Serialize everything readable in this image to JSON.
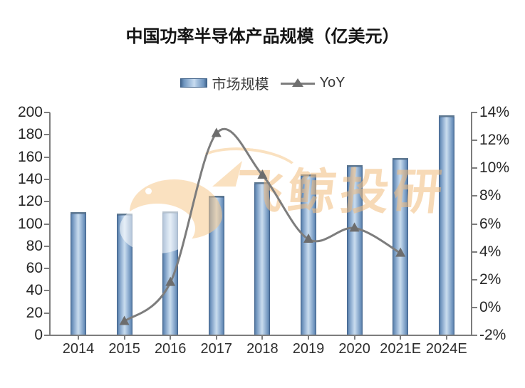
{
  "watermark": {
    "text": "飞鲸投研",
    "color": "#f2bc7e"
  },
  "chart_data": {
    "type": "bar",
    "combo": "bar+line",
    "title": "中国功率半导体产品规模（亿美元）",
    "categories": [
      "2014",
      "2015",
      "2016",
      "2017",
      "2018",
      "2019",
      "2020",
      "2021E",
      "2024E"
    ],
    "series": [
      {
        "name": "市场规模",
        "type": "bar",
        "axis": "left",
        "color": "#87aed3",
        "values": [
          110.5,
          109.5,
          111.5,
          125.5,
          137.5,
          144.5,
          153,
          159,
          197.5
        ]
      },
      {
        "name": "YoY",
        "type": "line",
        "axis": "right",
        "color": "#7d7d7d",
        "marker": "triangle-up",
        "values": [
          null,
          -1.0,
          1.8,
          12.5,
          9.5,
          4.9,
          5.7,
          3.9,
          null
        ]
      }
    ],
    "left_axis": {
      "min": 0,
      "max": 200,
      "step": 20,
      "tick_labels": [
        "200",
        "180",
        "160",
        "140",
        "120",
        "100",
        "80",
        "60",
        "40",
        "20",
        "0"
      ]
    },
    "right_axis": {
      "min": -2,
      "max": 14,
      "step": 2,
      "format": "percent",
      "tick_labels": [
        "14%",
        "12%",
        "10%",
        "8%",
        "6%",
        "4%",
        "2%",
        "0%",
        "-2%"
      ]
    },
    "grid": false,
    "legend_position": "top-center"
  }
}
